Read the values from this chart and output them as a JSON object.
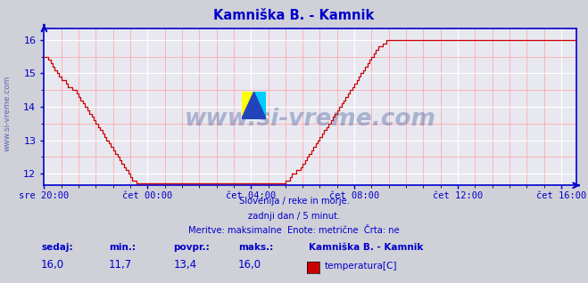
{
  "title": "Kamniška B. - Kamnik",
  "title_color": "#0000cc",
  "bg_color": "#d0d0d8",
  "plot_bg_color": "#e8e8f0",
  "grid_color_major": "#ffffff",
  "grid_color_minor": "#ffaaaa",
  "line_color": "#cc0000",
  "axis_color": "#0000cc",
  "tick_color": "#0000cc",
  "watermark_color": "#1a3a8a",
  "x_tick_labels": [
    "sre 20:00",
    "čet 00:00",
    "čet 04:00",
    "čet 08:00",
    "čet 12:00",
    "čet 16:00"
  ],
  "x_tick_positions": [
    0,
    48,
    96,
    144,
    192,
    240
  ],
  "ylim_min": 11.65,
  "ylim_max": 16.35,
  "yticks": [
    12,
    13,
    14,
    15,
    16
  ],
  "subtitle_lines": [
    "Slovenija / reke in morje.",
    "zadnji dan / 5 minut.",
    "Meritve: maksimalne  Enote: metrične  Črta: ne"
  ],
  "footer_labels": [
    "sedaj:",
    "min.:",
    "povpr.:",
    "maks.:"
  ],
  "footer_values": [
    "16,0",
    "11,7",
    "13,4",
    "16,0"
  ],
  "footer_series_name": "Kamniška B. - Kamnik",
  "footer_series_label": "temperatura[C]",
  "footer_series_color": "#cc0000",
  "watermark_text": "www.si-vreme.com",
  "side_watermark": "www.si-vreme.com",
  "data_values": [
    15.5,
    15.5,
    15.4,
    15.3,
    15.2,
    15.1,
    15.0,
    14.9,
    14.8,
    14.8,
    14.7,
    14.6,
    14.6,
    14.5,
    14.5,
    14.4,
    14.3,
    14.2,
    14.1,
    14.0,
    13.9,
    13.8,
    13.7,
    13.6,
    13.5,
    13.4,
    13.3,
    13.2,
    13.1,
    13.0,
    12.9,
    12.8,
    12.7,
    12.6,
    12.5,
    12.4,
    12.3,
    12.2,
    12.1,
    12.0,
    11.9,
    11.8,
    11.8,
    11.7,
    11.7,
    11.7,
    11.7,
    11.7,
    11.7,
    11.7,
    11.7,
    11.7,
    11.7,
    11.7,
    11.7,
    11.7,
    11.7,
    11.7,
    11.7,
    11.7,
    11.7,
    11.7,
    11.7,
    11.7,
    11.7,
    11.7,
    11.7,
    11.7,
    11.7,
    11.7,
    11.7,
    11.7,
    11.7,
    11.7,
    11.7,
    11.7,
    11.7,
    11.7,
    11.7,
    11.7,
    11.7,
    11.7,
    11.7,
    11.7,
    11.7,
    11.7,
    11.7,
    11.7,
    11.7,
    11.7,
    11.7,
    11.7,
    11.7,
    11.7,
    11.7,
    11.7,
    11.7,
    11.7,
    11.7,
    11.7,
    11.7,
    11.7,
    11.7,
    11.7,
    11.7,
    11.7,
    11.7,
    11.7,
    11.7,
    11.7,
    11.7,
    11.7,
    11.8,
    11.8,
    11.9,
    12.0,
    12.0,
    12.1,
    12.1,
    12.2,
    12.3,
    12.4,
    12.5,
    12.6,
    12.7,
    12.8,
    12.9,
    13.0,
    13.1,
    13.2,
    13.3,
    13.4,
    13.5,
    13.6,
    13.7,
    13.8,
    13.9,
    14.0,
    14.1,
    14.2,
    14.3,
    14.4,
    14.5,
    14.6,
    14.7,
    14.8,
    14.9,
    15.0,
    15.1,
    15.2,
    15.3,
    15.4,
    15.5,
    15.6,
    15.7,
    15.8,
    15.8,
    15.9,
    15.9,
    16.0,
    16.0,
    16.0,
    16.0,
    16.0,
    16.0,
    16.0,
    16.0,
    16.0,
    16.0,
    16.0,
    16.0,
    16.0,
    16.0,
    16.0,
    16.0,
    16.0,
    16.0,
    16.0,
    16.0,
    16.0,
    16.0,
    16.0,
    16.0,
    16.0,
    16.0,
    16.0,
    16.0,
    16.0,
    16.0,
    16.0,
    16.0,
    16.0,
    16.0,
    16.0,
    16.0,
    16.0,
    16.0,
    16.0,
    16.0,
    16.0,
    16.0,
    16.0,
    16.0,
    16.0,
    16.0,
    16.0,
    16.0,
    16.0,
    16.0,
    16.0,
    16.0,
    16.0,
    16.0,
    16.0,
    16.0,
    16.0,
    16.0,
    16.0,
    16.0,
    16.0,
    16.0,
    16.0,
    16.0,
    16.0,
    16.0,
    16.0,
    16.0,
    16.0,
    16.0,
    16.0,
    16.0,
    16.0,
    16.0,
    16.0,
    16.0,
    16.0,
    16.0,
    16.0,
    16.0,
    16.0,
    16.0,
    16.0,
    16.0,
    16.0,
    16.0,
    16.0,
    16.0,
    16.0
  ]
}
